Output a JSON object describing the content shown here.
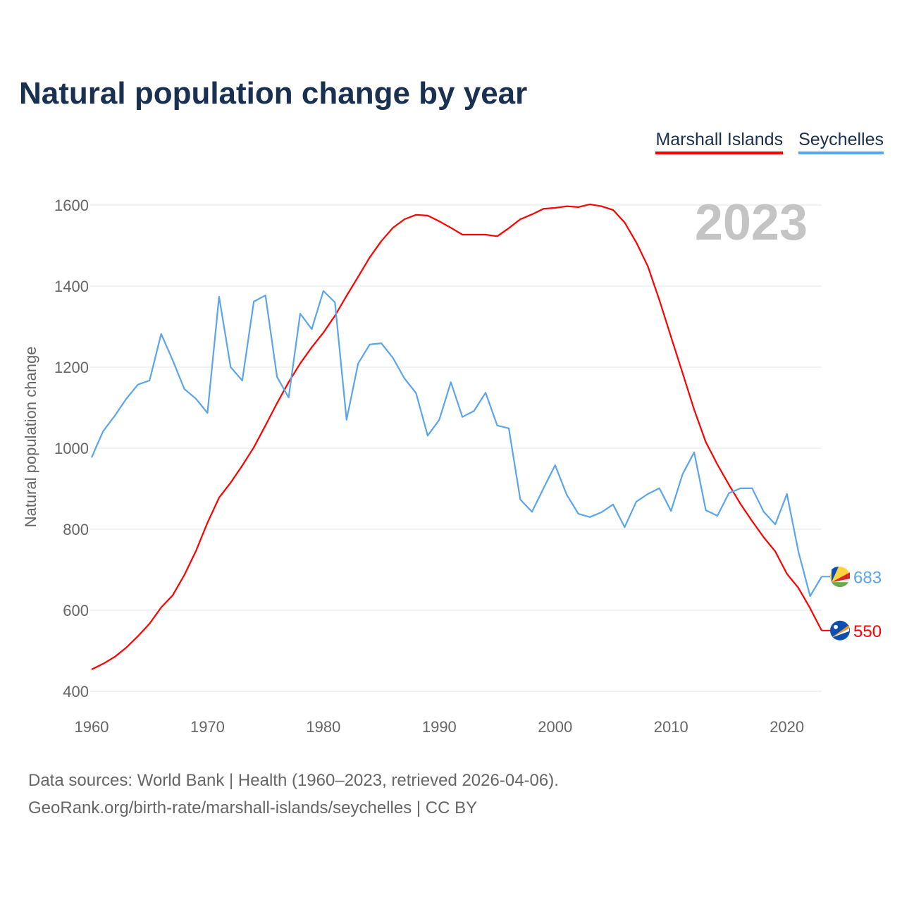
{
  "title": "Natural population change by year",
  "source_line1": "Data sources: World Bank | Health (1960–2023, retrieved 2026-04-06).",
  "source_line2": "GeoRank.org/birth-rate/marshall-islands/seychelles | CC BY",
  "chart_data": {
    "type": "line",
    "title": "Natural population change by year",
    "xlabel": "",
    "ylabel": "Natural population change",
    "year_label": "2023",
    "xlim": [
      1960,
      2023
    ],
    "ylim": [
      400,
      1600
    ],
    "x_ticks": [
      1960,
      1970,
      1980,
      1990,
      2000,
      2010,
      2020
    ],
    "y_ticks": [
      400,
      600,
      800,
      1000,
      1200,
      1400,
      1600
    ],
    "grid": true,
    "legend_position": "top-right",
    "x_start": 1960,
    "series": [
      {
        "name": "Marshall Islands",
        "color": "#ff0000",
        "end_label": "550",
        "values": [
          454,
          468,
          485,
          508,
          536,
          567,
          607,
          637,
          687,
          746,
          816,
          878,
          915,
          957,
          1002,
          1056,
          1111,
          1163,
          1209,
          1249,
          1285,
          1327,
          1376,
          1423,
          1471,
          1511,
          1544,
          1565,
          1576,
          1574,
          1560,
          1544,
          1527,
          1527,
          1527,
          1523,
          1543,
          1565,
          1577,
          1591,
          1593,
          1597,
          1595,
          1602,
          1597,
          1588,
          1557,
          1508,
          1449,
          1365,
          1275,
          1185,
          1095,
          1015,
          960,
          910,
          862,
          820,
          780,
          745,
          690,
          655,
          605,
          550
        ]
      },
      {
        "name": "Seychelles",
        "color": "#5aa5eb",
        "end_label": "683",
        "values": [
          977,
          1042,
          1080,
          1122,
          1157,
          1167,
          1282,
          1217,
          1146,
          1122,
          1087,
          1374,
          1200,
          1167,
          1362,
          1377,
          1176,
          1125,
          1332,
          1294,
          1388,
          1360,
          1070,
          1209,
          1256,
          1259,
          1223,
          1172,
          1136,
          1031,
          1070,
          1163,
          1077,
          1092,
          1137,
          1056,
          1049,
          873,
          843,
          901,
          958,
          885,
          838,
          830,
          842,
          861,
          805,
          868,
          887,
          901,
          845,
          936,
          990,
          847,
          833,
          889,
          901,
          901,
          843,
          812,
          887,
          744,
          635,
          683
        ]
      }
    ]
  }
}
